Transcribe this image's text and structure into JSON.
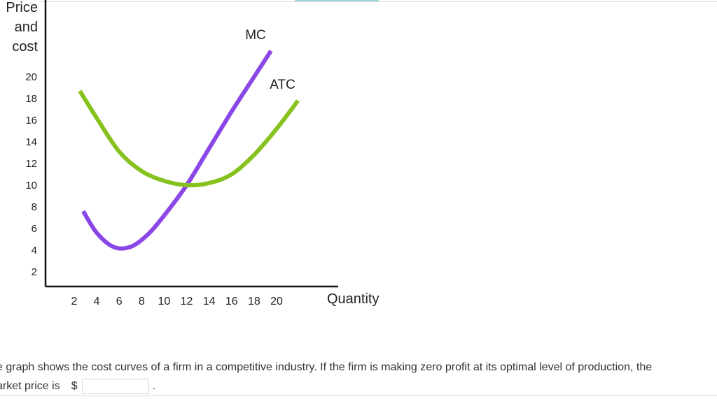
{
  "chart_data": {
    "type": "line",
    "ylabel_lines": [
      "Price",
      "and",
      "cost"
    ],
    "xlabel": "Quantity",
    "y_ticks": [
      20,
      18,
      16,
      14,
      12,
      10,
      8,
      6,
      4,
      2
    ],
    "x_ticks": [
      2,
      4,
      6,
      8,
      10,
      12,
      14,
      16,
      18,
      20
    ],
    "series": [
      {
        "name": "MC",
        "color": "#8b46e8",
        "points": [
          [
            2.8,
            7.6
          ],
          [
            4,
            5.6
          ],
          [
            5.5,
            4.3
          ],
          [
            7,
            4.3
          ],
          [
            8.5,
            5.4
          ],
          [
            10,
            7.2
          ],
          [
            12,
            10
          ],
          [
            14,
            13.4
          ],
          [
            16,
            16.8
          ],
          [
            18,
            20
          ],
          [
            19.5,
            22.4
          ]
        ]
      },
      {
        "name": "ATC",
        "color": "#86c21e",
        "points": [
          [
            2.5,
            18.7
          ],
          [
            4,
            16.2
          ],
          [
            6,
            13.1
          ],
          [
            8,
            11.3
          ],
          [
            10,
            10.4
          ],
          [
            12,
            10
          ],
          [
            14,
            10.2
          ],
          [
            16,
            11
          ],
          [
            18,
            12.8
          ],
          [
            20,
            15.2
          ],
          [
            21.9,
            17.8
          ]
        ]
      }
    ]
  },
  "question": {
    "line1": "e graph shows the cost curves of a firm in a competitive industry. If the firm is making zero profit at its optimal level of production, the",
    "line2_prefix": "arket price is",
    "currency": "$",
    "answer_value": "",
    "period": "."
  }
}
